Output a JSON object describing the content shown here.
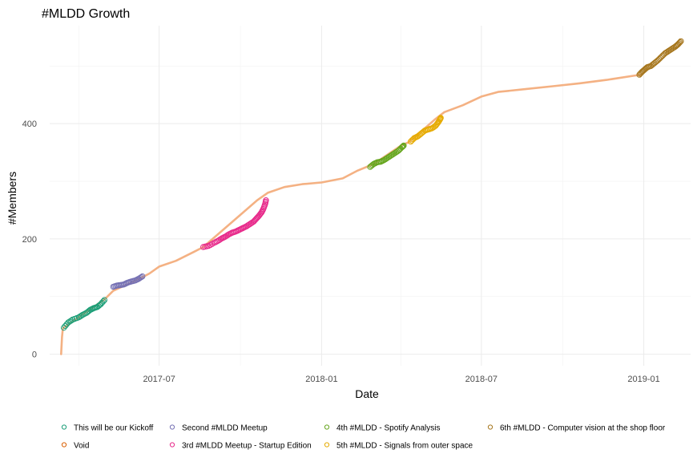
{
  "chart_data": {
    "type": "scatter",
    "title": "#MLDD Growth",
    "xlabel": "Date",
    "ylabel": "#Members",
    "x_ticks": [
      {
        "value": "2017-07-01",
        "label": "2017-07"
      },
      {
        "value": "2018-01-01",
        "label": "2018-01"
      },
      {
        "value": "2018-07-01",
        "label": "2018-07"
      },
      {
        "value": "2019-01-01",
        "label": "2019-01"
      }
    ],
    "y_ticks": [
      0,
      200,
      400
    ],
    "xlim": [
      "2017-02-27",
      "2019-02-23"
    ],
    "ylim": [
      -20,
      570
    ],
    "grid": true,
    "legend_position": "bottom",
    "series": [
      {
        "name": "Void",
        "color": "#F4B183",
        "marker": "line",
        "points": [
          [
            "2017-03-12",
            0
          ],
          [
            "2017-03-13",
            30
          ],
          [
            "2017-03-14",
            45
          ],
          [
            "2017-04-30",
            95
          ],
          [
            "2017-05-10",
            110
          ],
          [
            "2017-05-20",
            117
          ],
          [
            "2017-06-10",
            132
          ],
          [
            "2017-06-20",
            140
          ],
          [
            "2017-07-01",
            152
          ],
          [
            "2017-07-20",
            162
          ],
          [
            "2017-08-10",
            178
          ],
          [
            "2017-08-20",
            186
          ],
          [
            "2017-10-20",
            267
          ],
          [
            "2017-11-01",
            280
          ],
          [
            "2017-11-20",
            290
          ],
          [
            "2017-12-10",
            295
          ],
          [
            "2018-01-01",
            298
          ],
          [
            "2018-01-25",
            305
          ],
          [
            "2018-02-10",
            318
          ],
          [
            "2018-03-01",
            330
          ],
          [
            "2018-04-01",
            362
          ],
          [
            "2018-04-10",
            368
          ],
          [
            "2018-05-10",
            408
          ],
          [
            "2018-05-20",
            420
          ],
          [
            "2018-06-10",
            432
          ],
          [
            "2018-07-01",
            447
          ],
          [
            "2018-07-20",
            455
          ],
          [
            "2018-08-20",
            460
          ],
          [
            "2018-09-20",
            465
          ],
          [
            "2018-10-20",
            470
          ],
          [
            "2018-11-20",
            476
          ],
          [
            "2018-12-20",
            483
          ],
          [
            "2018-12-29",
            485
          ]
        ]
      },
      {
        "name": "This will be our Kickoff",
        "color": "#1B9E77",
        "points": [
          [
            "2017-03-15",
            46
          ],
          [
            "2017-03-20",
            55
          ],
          [
            "2017-03-25",
            60
          ],
          [
            "2017-04-01",
            64
          ],
          [
            "2017-04-05",
            68
          ],
          [
            "2017-04-10",
            72
          ],
          [
            "2017-04-14",
            77
          ],
          [
            "2017-04-18",
            80
          ],
          [
            "2017-04-22",
            82
          ],
          [
            "2017-04-26",
            87
          ],
          [
            "2017-04-30",
            94
          ]
        ]
      },
      {
        "name": "Second #MLDD Meetup",
        "color": "#7570B3",
        "points": [
          [
            "2017-05-10",
            117
          ],
          [
            "2017-05-14",
            119
          ],
          [
            "2017-05-18",
            120
          ],
          [
            "2017-05-22",
            121
          ],
          [
            "2017-05-26",
            124
          ],
          [
            "2017-05-30",
            126
          ],
          [
            "2017-06-04",
            128
          ],
          [
            "2017-06-08",
            131
          ],
          [
            "2017-06-12",
            135
          ]
        ]
      },
      {
        "name": "3rd #MLDD Meetup - Startup Edition",
        "color": "#E7298A",
        "points": [
          [
            "2017-08-20",
            186
          ],
          [
            "2017-08-26",
            188
          ],
          [
            "2017-09-01",
            193
          ],
          [
            "2017-09-06",
            197
          ],
          [
            "2017-09-10",
            201
          ],
          [
            "2017-09-14",
            204
          ],
          [
            "2017-09-18",
            208
          ],
          [
            "2017-09-22",
            211
          ],
          [
            "2017-09-26",
            213
          ],
          [
            "2017-09-30",
            216
          ],
          [
            "2017-10-04",
            219
          ],
          [
            "2017-10-08",
            222
          ],
          [
            "2017-10-12",
            226
          ],
          [
            "2017-10-16",
            230
          ],
          [
            "2017-10-19",
            235
          ],
          [
            "2017-10-22",
            240
          ],
          [
            "2017-10-25",
            246
          ],
          [
            "2017-10-27",
            252
          ],
          [
            "2017-10-29",
            260
          ],
          [
            "2017-10-30",
            267
          ]
        ]
      },
      {
        "name": "4th #MLDD - Spotify Analysis",
        "color": "#66A61E",
        "points": [
          [
            "2018-02-25",
            325
          ],
          [
            "2018-03-01",
            330
          ],
          [
            "2018-03-05",
            333
          ],
          [
            "2018-03-09",
            334
          ],
          [
            "2018-03-13",
            337
          ],
          [
            "2018-03-17",
            341
          ],
          [
            "2018-03-21",
            345
          ],
          [
            "2018-03-25",
            349
          ],
          [
            "2018-03-29",
            353
          ],
          [
            "2018-04-02",
            359
          ],
          [
            "2018-04-04",
            362
          ]
        ]
      },
      {
        "name": "5th #MLDD - Signals from outer space",
        "color": "#E6AB02",
        "points": [
          [
            "2018-04-12",
            369
          ],
          [
            "2018-04-16",
            375
          ],
          [
            "2018-04-20",
            378
          ],
          [
            "2018-04-24",
            383
          ],
          [
            "2018-04-28",
            388
          ],
          [
            "2018-05-02",
            390
          ],
          [
            "2018-05-06",
            392
          ],
          [
            "2018-05-10",
            396
          ],
          [
            "2018-05-13",
            402
          ],
          [
            "2018-05-15",
            407
          ],
          [
            "2018-05-16",
            410
          ]
        ]
      },
      {
        "name": "6th #MLDD - Computer vision at the shop floor",
        "color": "#A6761D",
        "points": [
          [
            "2018-12-27",
            485
          ],
          [
            "2018-12-30",
            490
          ],
          [
            "2019-01-02",
            494
          ],
          [
            "2019-01-05",
            498
          ],
          [
            "2019-01-09",
            500
          ],
          [
            "2019-01-13",
            505
          ],
          [
            "2019-01-17",
            510
          ],
          [
            "2019-01-21",
            516
          ],
          [
            "2019-01-25",
            522
          ],
          [
            "2019-01-29",
            526
          ],
          [
            "2019-02-02",
            530
          ],
          [
            "2019-02-06",
            534
          ],
          [
            "2019-02-09",
            538
          ],
          [
            "2019-02-12",
            543
          ]
        ]
      }
    ],
    "legend": [
      {
        "row": 0,
        "col": 0,
        "name": "This will be our Kickoff",
        "color": "#1B9E77"
      },
      {
        "row": 0,
        "col": 1,
        "name": "Second #MLDD Meetup",
        "color": "#7570B3"
      },
      {
        "row": 0,
        "col": 2,
        "name": "4th #MLDD - Spotify Analysis",
        "color": "#66A61E"
      },
      {
        "row": 0,
        "col": 3,
        "name": "6th #MLDD - Computer vision at the shop floor",
        "color": "#A6761D"
      },
      {
        "row": 1,
        "col": 0,
        "name": "Void",
        "color": "#D95F02"
      },
      {
        "row": 1,
        "col": 1,
        "name": "3rd #MLDD Meetup - Startup Edition",
        "color": "#E7298A"
      },
      {
        "row": 1,
        "col": 2,
        "name": "5th #MLDD - Signals from outer space",
        "color": "#E6AB02"
      }
    ]
  }
}
